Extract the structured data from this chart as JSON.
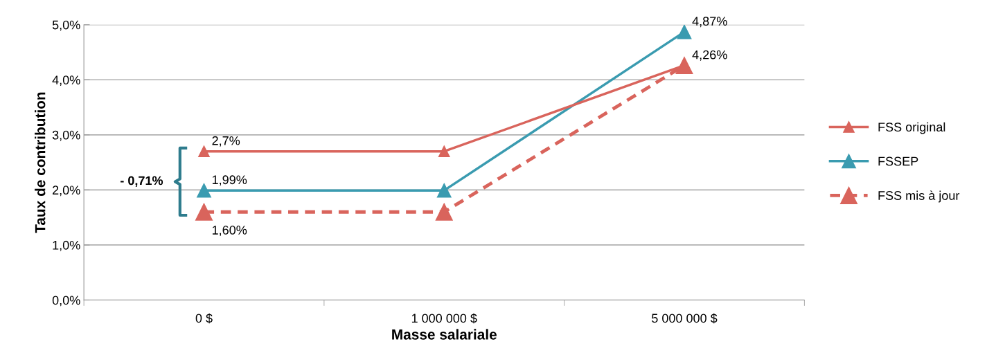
{
  "chart_data": {
    "type": "line",
    "xlabel": "Masse salariale",
    "ylabel": "Taux de contribution",
    "categories": [
      "0 $",
      "1 000 000 $",
      "5 000 000 $"
    ],
    "series": [
      {
        "name": "FSS original",
        "color": "#d9645c",
        "values": [
          2.7,
          2.7,
          4.26
        ],
        "value_labels": [
          "2,7%",
          null,
          "4,26%"
        ]
      },
      {
        "name": "FSSEP",
        "color": "#3a9bb0",
        "values": [
          1.99,
          1.99,
          4.87
        ],
        "value_labels": [
          "1,99%",
          null,
          "4,87%"
        ]
      },
      {
        "name": "FSS mis à jour",
        "color": "#d9645c",
        "values": [
          1.6,
          1.6,
          4.26
        ],
        "value_labels": [
          "1,60%",
          null,
          null
        ],
        "line_style": "dashed"
      }
    ],
    "ylim": [
      0,
      5
    ],
    "yticks": [
      {
        "value": 0,
        "label": "0,0%"
      },
      {
        "value": 1,
        "label": "1,0%"
      },
      {
        "value": 2,
        "label": "2,0%"
      },
      {
        "value": 3,
        "label": "3,0%"
      },
      {
        "value": 4,
        "label": "4,0%"
      },
      {
        "value": 5,
        "label": "5,0%"
      }
    ],
    "grid": "y",
    "legend": "right",
    "marker": "triangle",
    "line_style": "solid",
    "annotations": [
      "- 0,71%"
    ]
  }
}
